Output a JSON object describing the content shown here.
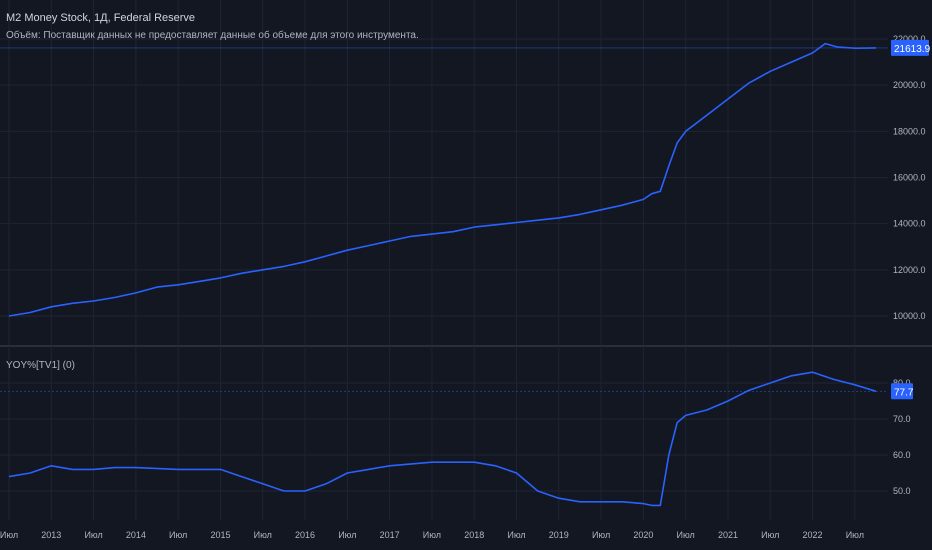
{
  "header": {
    "title": "M2 Money Stock, 1Д, Federal Reserve",
    "volume_note": "Объём: Поставщик данных не предоставляет данные об объеме для этого инструмента."
  },
  "indicator": {
    "label": "YOY%[TV1] (0)"
  },
  "colors": {
    "background": "#131722",
    "grid": "#1f2433",
    "series": "#2962ff",
    "badge": "#2962ff",
    "text": "#b2b5be",
    "pane_separator": "#2a2e39"
  },
  "chart_data": [
    {
      "type": "line",
      "title": "M2 Money Stock, 1Д, Federal Reserve",
      "series": [
        {
          "x": [
            2012.5,
            2012.75,
            2013.0,
            2013.25,
            2013.5,
            2013.75,
            2014.0,
            2014.25,
            2014.5,
            2014.75,
            2015.0,
            2015.25,
            2015.5,
            2015.75,
            2016.0,
            2016.25,
            2016.5,
            2016.75,
            2017.0,
            2017.25,
            2017.5,
            2017.75,
            2018.0,
            2018.25,
            2018.5,
            2018.75,
            2019.0,
            2019.25,
            2019.5,
            2019.75,
            2020.0,
            2020.1,
            2020.2,
            2020.3,
            2020.4,
            2020.5,
            2020.75,
            2021.0,
            2021.25,
            2021.5,
            2021.75,
            2022.0,
            2022.15,
            2022.3,
            2022.5,
            2022.75
          ],
          "values": [
            10000,
            10150,
            10400,
            10550,
            10650,
            10800,
            11000,
            11250,
            11350,
            11500,
            11650,
            11850,
            12000,
            12150,
            12350,
            12600,
            12850,
            13050,
            13250,
            13450,
            13550,
            13650,
            13850,
            13950,
            14050,
            14150,
            14250,
            14400,
            14600,
            14800,
            15050,
            15300,
            15400,
            16500,
            17500,
            18000,
            18700,
            19400,
            20100,
            20600,
            21000,
            21400,
            21800,
            21650,
            21600,
            21614
          ]
        }
      ],
      "ylim": [
        9600,
        22300
      ],
      "y_ticks": [
        "10000.0",
        "12000.0",
        "14000.0",
        "16000.0",
        "18000.0",
        "20000.0",
        "22000.0"
      ],
      "last_value": "21613.9",
      "grid": true
    },
    {
      "type": "line",
      "title": "YOY%[TV1] (0)",
      "series": [
        {
          "x": [
            2012.5,
            2012.75,
            2013.0,
            2013.25,
            2013.5,
            2013.75,
            2014.0,
            2014.5,
            2015.0,
            2015.25,
            2015.5,
            2015.75,
            2016.0,
            2016.25,
            2016.5,
            2016.75,
            2017.0,
            2017.5,
            2018.0,
            2018.25,
            2018.5,
            2018.75,
            2019.0,
            2019.25,
            2019.5,
            2019.75,
            2020.0,
            2020.1,
            2020.2,
            2020.3,
            2020.4,
            2020.5,
            2020.75,
            2021.0,
            2021.25,
            2021.5,
            2021.75,
            2022.0,
            2022.25,
            2022.5,
            2022.75
          ],
          "values": [
            54,
            55,
            57,
            56,
            56,
            56.5,
            56.5,
            56,
            56,
            54,
            52,
            50,
            50,
            52,
            55,
            56,
            57,
            58,
            58,
            57,
            55,
            50,
            48,
            47,
            47,
            47,
            46.5,
            46,
            46,
            60,
            69,
            71,
            72.5,
            75,
            78,
            80,
            82,
            83,
            81,
            79.5,
            77.7
          ]
        }
      ],
      "ylim": [
        43,
        86
      ],
      "y_ticks": [
        "50.0",
        "60.0",
        "70.0",
        "80.0"
      ],
      "last_value": "77.7",
      "grid": true
    }
  ],
  "time_axis": {
    "ticks": [
      {
        "label": "Июл",
        "x": 2012.5
      },
      {
        "label": "2013",
        "x": 2013.0
      },
      {
        "label": "Июл",
        "x": 2013.5
      },
      {
        "label": "2014",
        "x": 2014.0
      },
      {
        "label": "Июл",
        "x": 2014.5
      },
      {
        "label": "2015",
        "x": 2015.0
      },
      {
        "label": "Июл",
        "x": 2015.5
      },
      {
        "label": "2016",
        "x": 2016.0
      },
      {
        "label": "Июл",
        "x": 2016.5
      },
      {
        "label": "2017",
        "x": 2017.0
      },
      {
        "label": "Июл",
        "x": 2017.5
      },
      {
        "label": "2018",
        "x": 2018.0
      },
      {
        "label": "Июл",
        "x": 2018.5
      },
      {
        "label": "2019",
        "x": 2019.0
      },
      {
        "label": "Июл",
        "x": 2019.5
      },
      {
        "label": "2020",
        "x": 2020.0
      },
      {
        "label": "Июл",
        "x": 2020.5
      },
      {
        "label": "2021",
        "x": 2021.0
      },
      {
        "label": "Июл",
        "x": 2021.5
      },
      {
        "label": "2022",
        "x": 2022.0
      },
      {
        "label": "Июл",
        "x": 2022.5
      }
    ]
  }
}
